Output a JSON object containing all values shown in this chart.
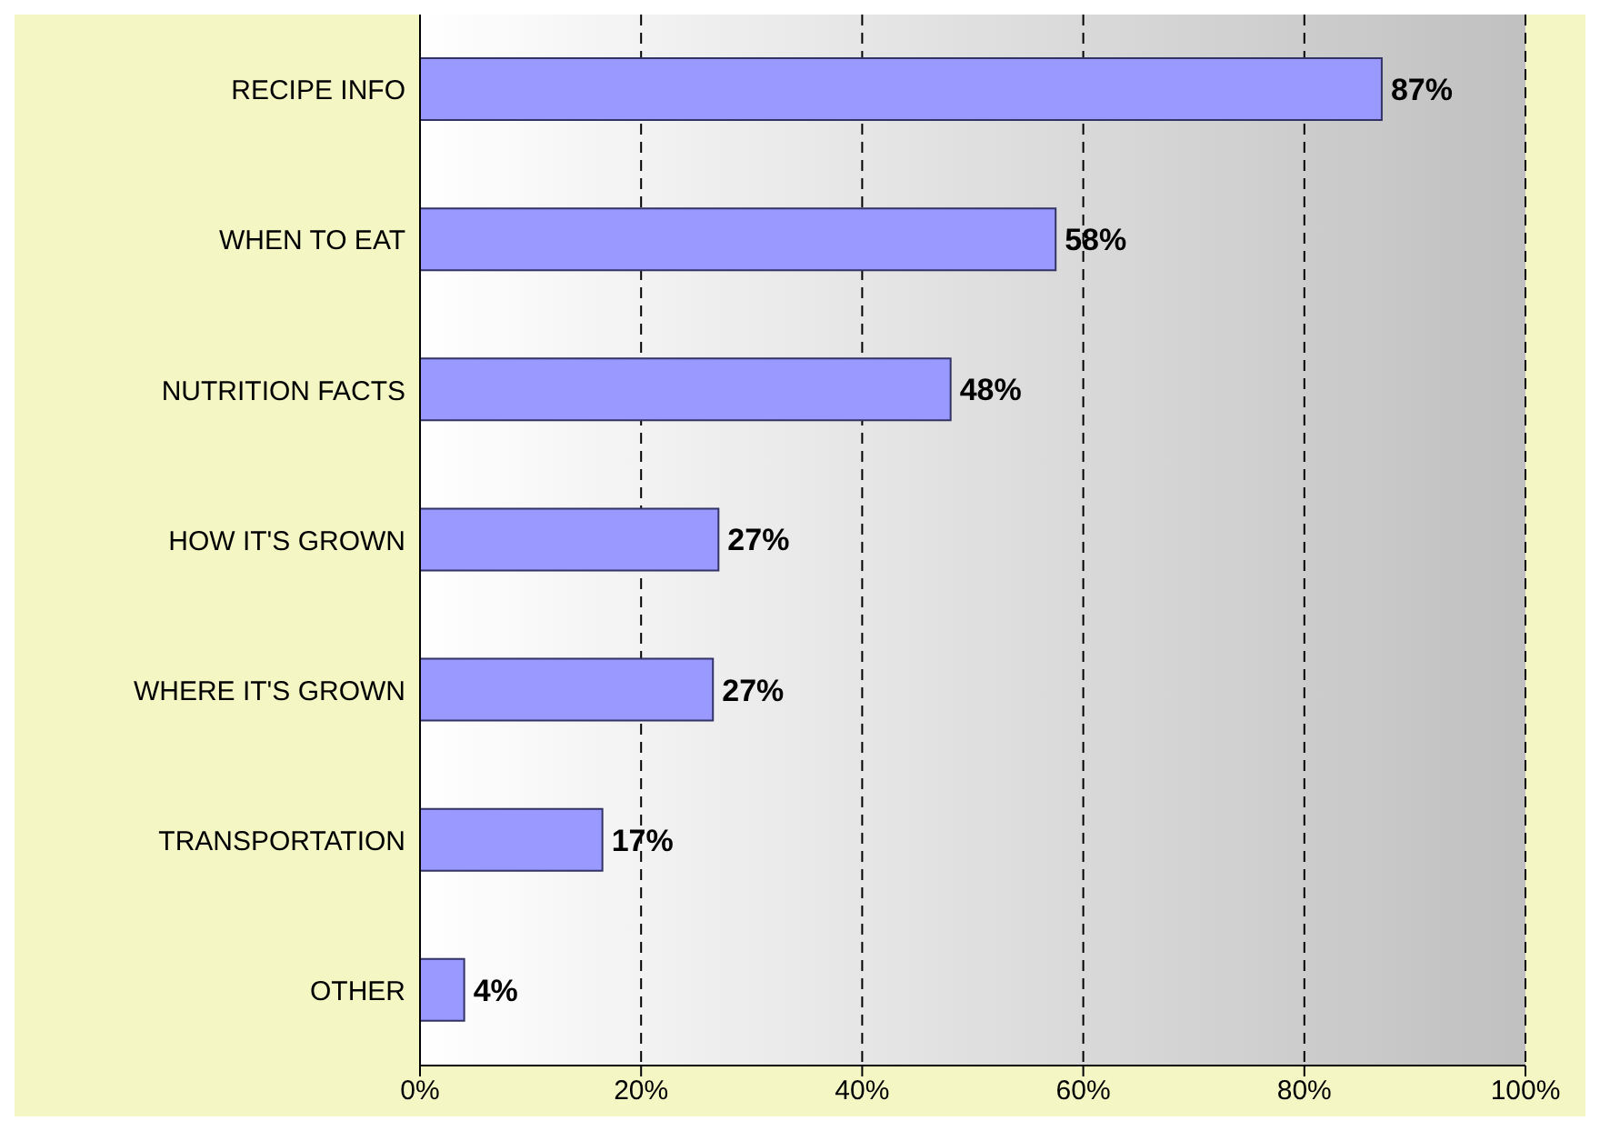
{
  "chart_data": {
    "type": "bar",
    "orientation": "horizontal",
    "categories": [
      "RECIPE INFO",
      "WHEN TO EAT",
      "NUTRITION FACTS",
      "HOW IT'S GROWN",
      "WHERE IT'S GROWN",
      "TRANSPORTATION",
      "OTHER"
    ],
    "values": [
      87,
      57.5,
      48,
      27,
      26.5,
      16.5,
      4
    ],
    "value_labels": [
      "87%",
      "58%",
      "48%",
      "27%",
      "27%",
      "17%",
      "4%"
    ],
    "color": "#9999ff",
    "xlim": [
      0,
      100
    ],
    "xticks": [
      {
        "value": 0,
        "label": "0%"
      },
      {
        "value": 20,
        "label": "20%"
      },
      {
        "value": 40,
        "label": "40%"
      },
      {
        "value": 60,
        "label": "60%"
      },
      {
        "value": 80,
        "label": "80%"
      },
      {
        "value": 100,
        "label": "100%"
      }
    ],
    "grid": "x"
  }
}
